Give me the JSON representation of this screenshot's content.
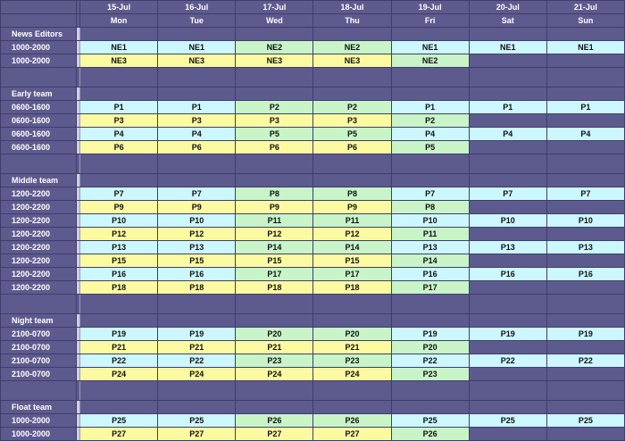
{
  "days": [
    {
      "date": "15-Jul",
      "dow": "Mon"
    },
    {
      "date": "16-Jul",
      "dow": "Tue"
    },
    {
      "date": "17-Jul",
      "dow": "Wed"
    },
    {
      "date": "18-Jul",
      "dow": "Thu"
    },
    {
      "date": "19-Jul",
      "dow": "Fri"
    },
    {
      "date": "20-Jul",
      "dow": "Sat"
    },
    {
      "date": "21-Jul",
      "dow": "Sun"
    }
  ],
  "colors": {
    "cyan": "#ccf7ff",
    "yellow": "#fbfaa0",
    "green": "#c8f4c8",
    "blank": "#5d5b8e"
  },
  "sections": [
    {
      "name": "News Editors",
      "rows": [
        {
          "shift": "1000-2000",
          "cells": [
            {
              "v": "NE1",
              "c": "cyan"
            },
            {
              "v": "NE1",
              "c": "cyan"
            },
            {
              "v": "NE2",
              "c": "green"
            },
            {
              "v": "NE2",
              "c": "green"
            },
            {
              "v": "NE1",
              "c": "cyan"
            },
            {
              "v": "NE1",
              "c": "cyan"
            },
            {
              "v": "NE1",
              "c": "cyan"
            }
          ]
        },
        {
          "shift": "1000-2000",
          "cells": [
            {
              "v": "NE3",
              "c": "yellow"
            },
            {
              "v": "NE3",
              "c": "yellow"
            },
            {
              "v": "NE3",
              "c": "yellow"
            },
            {
              "v": "NE3",
              "c": "yellow"
            },
            {
              "v": "NE2",
              "c": "green"
            },
            {
              "v": "",
              "c": "blank"
            },
            {
              "v": "",
              "c": "blank"
            }
          ]
        }
      ]
    },
    {
      "name": "Early team",
      "rows": [
        {
          "shift": "0600-1600",
          "cells": [
            {
              "v": "P1",
              "c": "cyan"
            },
            {
              "v": "P1",
              "c": "cyan"
            },
            {
              "v": "P2",
              "c": "green"
            },
            {
              "v": "P2",
              "c": "green"
            },
            {
              "v": "P1",
              "c": "cyan"
            },
            {
              "v": "P1",
              "c": "cyan"
            },
            {
              "v": "P1",
              "c": "cyan"
            }
          ]
        },
        {
          "shift": "0600-1600",
          "cells": [
            {
              "v": "P3",
              "c": "yellow"
            },
            {
              "v": "P3",
              "c": "yellow"
            },
            {
              "v": "P3",
              "c": "yellow"
            },
            {
              "v": "P3",
              "c": "yellow"
            },
            {
              "v": "P2",
              "c": "green"
            },
            {
              "v": "",
              "c": "blank"
            },
            {
              "v": "",
              "c": "blank"
            }
          ]
        },
        {
          "shift": "0600-1600",
          "cells": [
            {
              "v": "P4",
              "c": "cyan"
            },
            {
              "v": "P4",
              "c": "cyan"
            },
            {
              "v": "P5",
              "c": "green"
            },
            {
              "v": "P5",
              "c": "green"
            },
            {
              "v": "P4",
              "c": "cyan"
            },
            {
              "v": "P4",
              "c": "cyan"
            },
            {
              "v": "P4",
              "c": "cyan"
            }
          ]
        },
        {
          "shift": "0600-1600",
          "cells": [
            {
              "v": "P6",
              "c": "yellow"
            },
            {
              "v": "P6",
              "c": "yellow"
            },
            {
              "v": "P6",
              "c": "yellow"
            },
            {
              "v": "P6",
              "c": "yellow"
            },
            {
              "v": "P5",
              "c": "green"
            },
            {
              "v": "",
              "c": "blank"
            },
            {
              "v": "",
              "c": "blank"
            }
          ]
        }
      ]
    },
    {
      "name": "Middle team",
      "rows": [
        {
          "shift": "1200-2200",
          "cells": [
            {
              "v": "P7",
              "c": "cyan"
            },
            {
              "v": "P7",
              "c": "cyan"
            },
            {
              "v": "P8",
              "c": "green"
            },
            {
              "v": "P8",
              "c": "green"
            },
            {
              "v": "P7",
              "c": "cyan"
            },
            {
              "v": "P7",
              "c": "cyan"
            },
            {
              "v": "P7",
              "c": "cyan"
            }
          ]
        },
        {
          "shift": "1200-2200",
          "cells": [
            {
              "v": "P9",
              "c": "yellow"
            },
            {
              "v": "P9",
              "c": "yellow"
            },
            {
              "v": "P9",
              "c": "yellow"
            },
            {
              "v": "P9",
              "c": "yellow"
            },
            {
              "v": "P8",
              "c": "green"
            },
            {
              "v": "",
              "c": "blank"
            },
            {
              "v": "",
              "c": "blank"
            }
          ]
        },
        {
          "shift": "1200-2200",
          "cells": [
            {
              "v": "P10",
              "c": "cyan"
            },
            {
              "v": "P10",
              "c": "cyan"
            },
            {
              "v": "P11",
              "c": "green"
            },
            {
              "v": "P11",
              "c": "green"
            },
            {
              "v": "P10",
              "c": "cyan"
            },
            {
              "v": "P10",
              "c": "cyan"
            },
            {
              "v": "P10",
              "c": "cyan"
            }
          ]
        },
        {
          "shift": "1200-2200",
          "cells": [
            {
              "v": "P12",
              "c": "yellow"
            },
            {
              "v": "P12",
              "c": "yellow"
            },
            {
              "v": "P12",
              "c": "yellow"
            },
            {
              "v": "P12",
              "c": "yellow"
            },
            {
              "v": "P11",
              "c": "green"
            },
            {
              "v": "",
              "c": "blank"
            },
            {
              "v": "",
              "c": "blank"
            }
          ]
        },
        {
          "shift": "1200-2200",
          "cells": [
            {
              "v": "P13",
              "c": "cyan"
            },
            {
              "v": "P13",
              "c": "cyan"
            },
            {
              "v": "P14",
              "c": "green"
            },
            {
              "v": "P14",
              "c": "green"
            },
            {
              "v": "P13",
              "c": "cyan"
            },
            {
              "v": "P13",
              "c": "cyan"
            },
            {
              "v": "P13",
              "c": "cyan"
            }
          ]
        },
        {
          "shift": "1200-2200",
          "cells": [
            {
              "v": "P15",
              "c": "yellow"
            },
            {
              "v": "P15",
              "c": "yellow"
            },
            {
              "v": "P15",
              "c": "yellow"
            },
            {
              "v": "P15",
              "c": "yellow"
            },
            {
              "v": "P14",
              "c": "green"
            },
            {
              "v": "",
              "c": "blank"
            },
            {
              "v": "",
              "c": "blank"
            }
          ]
        },
        {
          "shift": "1200-2200",
          "cells": [
            {
              "v": "P16",
              "c": "cyan"
            },
            {
              "v": "P16",
              "c": "cyan"
            },
            {
              "v": "P17",
              "c": "green"
            },
            {
              "v": "P17",
              "c": "green"
            },
            {
              "v": "P16",
              "c": "cyan"
            },
            {
              "v": "P16",
              "c": "cyan"
            },
            {
              "v": "P16",
              "c": "cyan"
            }
          ]
        },
        {
          "shift": "1200-2200",
          "cells": [
            {
              "v": "P18",
              "c": "yellow"
            },
            {
              "v": "P18",
              "c": "yellow"
            },
            {
              "v": "P18",
              "c": "yellow"
            },
            {
              "v": "P18",
              "c": "yellow"
            },
            {
              "v": "P17",
              "c": "green"
            },
            {
              "v": "",
              "c": "blank"
            },
            {
              "v": "",
              "c": "blank"
            }
          ]
        }
      ]
    },
    {
      "name": "Night team",
      "rows": [
        {
          "shift": "2100-0700",
          "cells": [
            {
              "v": "P19",
              "c": "cyan"
            },
            {
              "v": "P19",
              "c": "cyan"
            },
            {
              "v": "P20",
              "c": "green"
            },
            {
              "v": "P20",
              "c": "green"
            },
            {
              "v": "P19",
              "c": "cyan"
            },
            {
              "v": "P19",
              "c": "cyan"
            },
            {
              "v": "P19",
              "c": "cyan"
            }
          ]
        },
        {
          "shift": "2100-0700",
          "cells": [
            {
              "v": "P21",
              "c": "yellow"
            },
            {
              "v": "P21",
              "c": "yellow"
            },
            {
              "v": "P21",
              "c": "yellow"
            },
            {
              "v": "P21",
              "c": "yellow"
            },
            {
              "v": "P20",
              "c": "green"
            },
            {
              "v": "",
              "c": "blank"
            },
            {
              "v": "",
              "c": "blank"
            }
          ]
        },
        {
          "shift": "2100-0700",
          "cells": [
            {
              "v": "P22",
              "c": "cyan"
            },
            {
              "v": "P22",
              "c": "cyan"
            },
            {
              "v": "P23",
              "c": "green"
            },
            {
              "v": "P23",
              "c": "green"
            },
            {
              "v": "P22",
              "c": "cyan"
            },
            {
              "v": "P22",
              "c": "cyan"
            },
            {
              "v": "P22",
              "c": "cyan"
            }
          ]
        },
        {
          "shift": "2100-0700",
          "cells": [
            {
              "v": "P24",
              "c": "yellow"
            },
            {
              "v": "P24",
              "c": "yellow"
            },
            {
              "v": "P24",
              "c": "yellow"
            },
            {
              "v": "P24",
              "c": "yellow"
            },
            {
              "v": "P23",
              "c": "green"
            },
            {
              "v": "",
              "c": "blank"
            },
            {
              "v": "",
              "c": "blank"
            }
          ]
        }
      ]
    },
    {
      "name": "Float team",
      "rows": [
        {
          "shift": "1000-2000",
          "cells": [
            {
              "v": "P25",
              "c": "cyan"
            },
            {
              "v": "P25",
              "c": "cyan"
            },
            {
              "v": "P26",
              "c": "green"
            },
            {
              "v": "P26",
              "c": "green"
            },
            {
              "v": "P25",
              "c": "cyan"
            },
            {
              "v": "P25",
              "c": "cyan"
            },
            {
              "v": "P25",
              "c": "cyan"
            }
          ]
        },
        {
          "shift": "1000-2000",
          "cells": [
            {
              "v": "P27",
              "c": "yellow"
            },
            {
              "v": "P27",
              "c": "yellow"
            },
            {
              "v": "P27",
              "c": "yellow"
            },
            {
              "v": "P27",
              "c": "yellow"
            },
            {
              "v": "P26",
              "c": "green"
            },
            {
              "v": "",
              "c": "blank"
            },
            {
              "v": "",
              "c": "blank"
            }
          ]
        }
      ]
    }
  ]
}
